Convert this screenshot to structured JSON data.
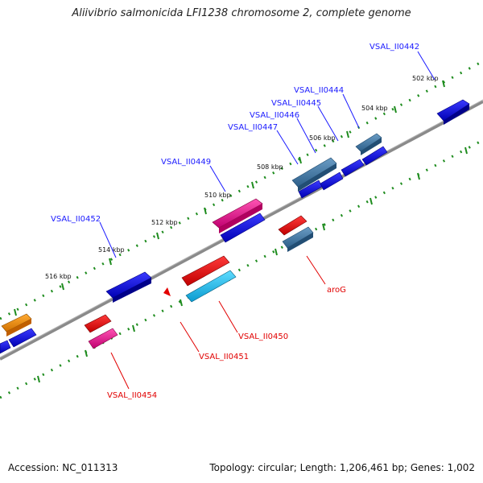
{
  "title": "Aliivibrio salmonicida LFI1238 chromosome 2, complete genome",
  "footer": {
    "accession": "Accession: NC_011313",
    "summary": "Topology: circular; Length: 1,206,461 bp; Genes: 1,002"
  },
  "scale_ticks": [
    "502 kbp",
    "504 kbp",
    "506 kbp",
    "508 kbp",
    "510 kbp",
    "512 kbp",
    "514 kbp",
    "516 kbp"
  ],
  "genes_forward": [
    "VSAL_II0442",
    "VSAL_II0444",
    "VSAL_II0445",
    "VSAL_II0446",
    "VSAL_II0447",
    "VSAL_II0449",
    "VSAL_II0452"
  ],
  "genes_reverse": [
    "aroG",
    "VSAL_II0450",
    "VSAL_II0451",
    "VSAL_II0454"
  ],
  "colors": {
    "gene_blue": "#0b0bdc",
    "gene_steel": "#3f7aa8",
    "gene_pink": "#e0168a",
    "gene_red": "#e30000",
    "gene_cyan": "#17b8e8",
    "gene_orange": "#f08a00",
    "backbone": "#777777",
    "ruler_dots": "#1e8c1e",
    "label_forward": "#1a1aff",
    "label_reverse": "#e10000"
  }
}
